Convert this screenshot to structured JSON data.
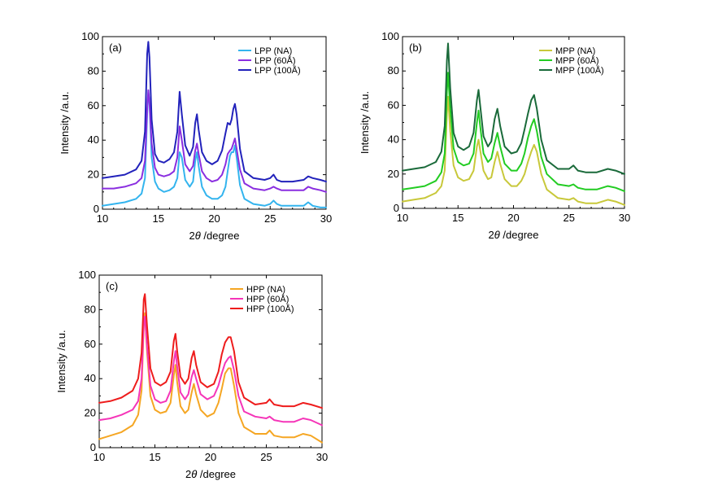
{
  "chart_data": [
    {
      "type": "line",
      "panel_label": "(a)",
      "xlabel_prefix": "2",
      "xlabel_symbol": "θ",
      "xlabel_suffix": " /degree",
      "ylabel": "Intensity /a.u.",
      "xlim": [
        10,
        30
      ],
      "ylim": [
        0,
        100
      ],
      "xticks": [
        10,
        15,
        20,
        25,
        30
      ],
      "yticks": [
        0,
        20,
        40,
        60,
        80,
        100
      ],
      "legend_position": "top-right",
      "series": [
        {
          "name": "LPP (NA)",
          "color": "#33b4ee",
          "x": [
            10,
            11,
            12,
            13,
            13.5,
            13.8,
            14.0,
            14.1,
            14.2,
            14.4,
            14.7,
            15.0,
            15.5,
            16.0,
            16.4,
            16.7,
            16.9,
            17.1,
            17.4,
            17.8,
            18.1,
            18.3,
            18.45,
            18.6,
            18.9,
            19.3,
            19.8,
            20.3,
            20.7,
            21.0,
            21.2,
            21.4,
            21.55,
            21.7,
            21.85,
            22.0,
            22.3,
            22.7,
            23.5,
            24.5,
            25.0,
            25.3,
            25.6,
            26.0,
            27.0,
            28.0,
            28.4,
            28.8,
            29.5,
            30
          ],
          "y": [
            2,
            3,
            4,
            6,
            9,
            18,
            55,
            68,
            62,
            30,
            16,
            12,
            10,
            11,
            13,
            18,
            33,
            30,
            17,
            13,
            16,
            28,
            33,
            25,
            13,
            8,
            6,
            6,
            8,
            13,
            22,
            31,
            33,
            33,
            37,
            30,
            14,
            6,
            3,
            2,
            3,
            5,
            3,
            2,
            2,
            2,
            4,
            2,
            1,
            1
          ]
        },
        {
          "name": "LPP (60Å)",
          "color": "#8a2ee0",
          "x": [
            10,
            11,
            12,
            13,
            13.5,
            13.8,
            14.0,
            14.1,
            14.2,
            14.4,
            14.7,
            15.0,
            15.5,
            16.0,
            16.4,
            16.7,
            16.9,
            17.1,
            17.4,
            17.8,
            18.1,
            18.3,
            18.45,
            18.6,
            18.9,
            19.3,
            19.8,
            20.3,
            20.7,
            21.0,
            21.2,
            21.4,
            21.55,
            21.7,
            21.85,
            22.0,
            22.3,
            22.7,
            23.5,
            24.5,
            25.0,
            25.3,
            25.6,
            26.0,
            27.0,
            28.0,
            28.4,
            28.8,
            29.5,
            30
          ],
          "y": [
            12,
            12,
            13,
            15,
            18,
            28,
            58,
            69,
            62,
            38,
            24,
            20,
            19,
            20,
            22,
            30,
            48,
            40,
            26,
            22,
            25,
            34,
            38,
            32,
            22,
            18,
            16,
            17,
            20,
            26,
            32,
            34,
            35,
            38,
            41,
            35,
            23,
            15,
            12,
            11,
            12,
            13,
            12,
            11,
            11,
            11,
            13,
            12,
            11,
            10
          ]
        },
        {
          "name": "LPP (100Å)",
          "color": "#2222bb",
          "x": [
            10,
            11,
            12,
            13,
            13.5,
            13.8,
            14.0,
            14.1,
            14.2,
            14.4,
            14.7,
            15.0,
            15.5,
            16.0,
            16.4,
            16.7,
            16.9,
            17.1,
            17.4,
            17.8,
            18.1,
            18.3,
            18.45,
            18.6,
            18.9,
            19.3,
            19.8,
            20.3,
            20.7,
            21.0,
            21.2,
            21.4,
            21.55,
            21.7,
            21.85,
            22.0,
            22.3,
            22.7,
            23.5,
            24.5,
            25.0,
            25.3,
            25.6,
            26.0,
            27.0,
            28.0,
            28.4,
            28.8,
            29.5,
            30
          ],
          "y": [
            18,
            19,
            20,
            23,
            28,
            45,
            90,
            97,
            88,
            52,
            32,
            28,
            27,
            29,
            33,
            45,
            68,
            55,
            37,
            31,
            36,
            50,
            55,
            46,
            33,
            28,
            26,
            28,
            34,
            44,
            50,
            49,
            52,
            58,
            61,
            55,
            35,
            22,
            18,
            17,
            18,
            20,
            17,
            16,
            16,
            17,
            19,
            18,
            17,
            16
          ]
        }
      ]
    },
    {
      "type": "line",
      "panel_label": "(b)",
      "xlabel_prefix": "2",
      "xlabel_symbol": "θ",
      "xlabel_suffix": " /degree",
      "ylabel": "Intensity /a.u.",
      "xlim": [
        10,
        30
      ],
      "ylim": [
        0,
        100
      ],
      "xticks": [
        10,
        15,
        20,
        25,
        30
      ],
      "yticks": [
        0,
        20,
        40,
        60,
        80,
        100
      ],
      "legend_position": "top-right",
      "series": [
        {
          "name": "MPP (NA)",
          "color": "#c8c83a",
          "x": [
            10,
            11,
            12,
            13,
            13.5,
            13.8,
            14.0,
            14.1,
            14.3,
            14.6,
            15.0,
            15.5,
            16.0,
            16.4,
            16.7,
            16.85,
            17.0,
            17.3,
            17.7,
            18.0,
            18.3,
            18.55,
            18.8,
            19.2,
            19.8,
            20.3,
            20.7,
            21.0,
            21.3,
            21.6,
            21.85,
            22.1,
            22.5,
            23.0,
            24.0,
            25.0,
            25.4,
            25.8,
            26.5,
            27.5,
            28.5,
            29.2,
            30
          ],
          "y": [
            4,
            5,
            6,
            9,
            13,
            22,
            55,
            65,
            45,
            25,
            18,
            16,
            17,
            22,
            36,
            40,
            34,
            22,
            17,
            18,
            27,
            33,
            26,
            17,
            13,
            13,
            16,
            20,
            27,
            33,
            37,
            33,
            20,
            11,
            6,
            5,
            6,
            4,
            3,
            3,
            5,
            4,
            2
          ]
        },
        {
          "name": "MPP (60Å)",
          "color": "#22cc22",
          "x": [
            10,
            11,
            12,
            13,
            13.5,
            13.8,
            14.0,
            14.1,
            14.3,
            14.6,
            15.0,
            15.5,
            16.0,
            16.4,
            16.7,
            16.85,
            17.0,
            17.3,
            17.7,
            18.0,
            18.3,
            18.55,
            18.8,
            19.2,
            19.8,
            20.3,
            20.7,
            21.0,
            21.3,
            21.6,
            21.85,
            22.1,
            22.5,
            23.0,
            24.0,
            25.0,
            25.4,
            25.8,
            26.5,
            27.5,
            28.5,
            29.2,
            30
          ],
          "y": [
            11,
            12,
            13,
            16,
            21,
            32,
            68,
            79,
            58,
            35,
            27,
            25,
            26,
            32,
            50,
            57,
            48,
            32,
            27,
            29,
            38,
            44,
            36,
            26,
            22,
            22,
            26,
            32,
            41,
            48,
            52,
            45,
            30,
            20,
            14,
            13,
            14,
            12,
            11,
            11,
            13,
            12,
            10
          ]
        },
        {
          "name": "MPP (100Å)",
          "color": "#1a6a3a",
          "x": [
            10,
            11,
            12,
            13,
            13.5,
            13.8,
            14.0,
            14.1,
            14.3,
            14.6,
            15.0,
            15.5,
            16.0,
            16.4,
            16.7,
            16.85,
            17.0,
            17.3,
            17.7,
            18.0,
            18.3,
            18.55,
            18.8,
            19.2,
            19.8,
            20.3,
            20.7,
            21.0,
            21.3,
            21.6,
            21.85,
            22.1,
            22.5,
            23.0,
            24.0,
            25.0,
            25.4,
            25.8,
            26.5,
            27.5,
            28.5,
            29.2,
            30
          ],
          "y": [
            22,
            23,
            24,
            27,
            33,
            48,
            86,
            96,
            70,
            44,
            36,
            34,
            36,
            44,
            63,
            69,
            60,
            42,
            36,
            39,
            52,
            58,
            48,
            36,
            32,
            33,
            38,
            46,
            55,
            63,
            66,
            58,
            40,
            28,
            23,
            23,
            25,
            22,
            21,
            21,
            23,
            22,
            20
          ]
        }
      ]
    },
    {
      "type": "line",
      "panel_label": "(c)",
      "xlabel_prefix": "2",
      "xlabel_symbol": "θ",
      "xlabel_suffix": " /degree",
      "ylabel": "Intensity /a.u.",
      "xlim": [
        10,
        30
      ],
      "ylim": [
        0,
        100
      ],
      "xticks": [
        10,
        15,
        20,
        25,
        30
      ],
      "yticks": [
        0,
        20,
        40,
        60,
        80,
        100
      ],
      "legend_position": "top-right",
      "series": [
        {
          "name": "HPP (NA)",
          "color": "#f5a623",
          "x": [
            10,
            11,
            12,
            13,
            13.5,
            13.8,
            14.0,
            14.1,
            14.3,
            14.6,
            15.0,
            15.5,
            16.0,
            16.4,
            16.7,
            16.85,
            17.0,
            17.3,
            17.7,
            18.0,
            18.3,
            18.5,
            18.7,
            19.1,
            19.7,
            20.3,
            20.7,
            21.0,
            21.3,
            21.6,
            21.8,
            22.1,
            22.5,
            23.0,
            24.0,
            25.0,
            25.3,
            25.7,
            26.5,
            27.5,
            28.3,
            29.0,
            30
          ],
          "y": [
            5,
            7,
            9,
            13,
            19,
            33,
            70,
            78,
            55,
            30,
            22,
            20,
            21,
            26,
            42,
            48,
            38,
            24,
            20,
            22,
            32,
            37,
            31,
            22,
            18,
            20,
            26,
            34,
            43,
            46,
            46,
            36,
            20,
            12,
            8,
            8,
            10,
            7,
            6,
            6,
            8,
            7,
            3
          ]
        },
        {
          "name": "HPP (60Å)",
          "color": "#f535b8",
          "x": [
            10,
            11,
            12,
            13,
            13.5,
            13.8,
            14.0,
            14.1,
            14.3,
            14.6,
            15.0,
            15.5,
            16.0,
            16.4,
            16.7,
            16.85,
            17.0,
            17.3,
            17.7,
            18.0,
            18.3,
            18.5,
            18.7,
            19.1,
            19.7,
            20.3,
            20.7,
            21.0,
            21.3,
            21.6,
            21.8,
            22.1,
            22.5,
            23.0,
            24.0,
            25.0,
            25.3,
            25.7,
            26.5,
            27.5,
            28.3,
            29.0,
            30
          ],
          "y": [
            16,
            17,
            19,
            22,
            27,
            40,
            72,
            76,
            58,
            36,
            28,
            26,
            27,
            33,
            50,
            56,
            47,
            32,
            28,
            31,
            41,
            45,
            40,
            31,
            28,
            30,
            36,
            43,
            49,
            52,
            53,
            45,
            30,
            21,
            18,
            17,
            18,
            16,
            15,
            15,
            17,
            16,
            13
          ]
        },
        {
          "name": "HPP (100Å)",
          "color": "#ee1c1c",
          "x": [
            10,
            11,
            12,
            13,
            13.5,
            13.8,
            14.0,
            14.1,
            14.3,
            14.6,
            15.0,
            15.5,
            16.0,
            16.4,
            16.7,
            16.85,
            17.0,
            17.3,
            17.7,
            18.0,
            18.3,
            18.5,
            18.7,
            19.1,
            19.7,
            20.3,
            20.7,
            21.0,
            21.3,
            21.6,
            21.8,
            22.1,
            22.5,
            23.0,
            24.0,
            25.0,
            25.3,
            25.7,
            26.5,
            27.5,
            28.3,
            29.0,
            30
          ],
          "y": [
            26,
            27,
            29,
            33,
            40,
            55,
            86,
            89,
            70,
            46,
            38,
            36,
            38,
            44,
            62,
            66,
            56,
            41,
            37,
            40,
            52,
            56,
            48,
            38,
            35,
            37,
            44,
            54,
            61,
            64,
            64,
            56,
            38,
            29,
            25,
            26,
            28,
            25,
            24,
            24,
            26,
            25,
            23
          ]
        }
      ]
    }
  ]
}
